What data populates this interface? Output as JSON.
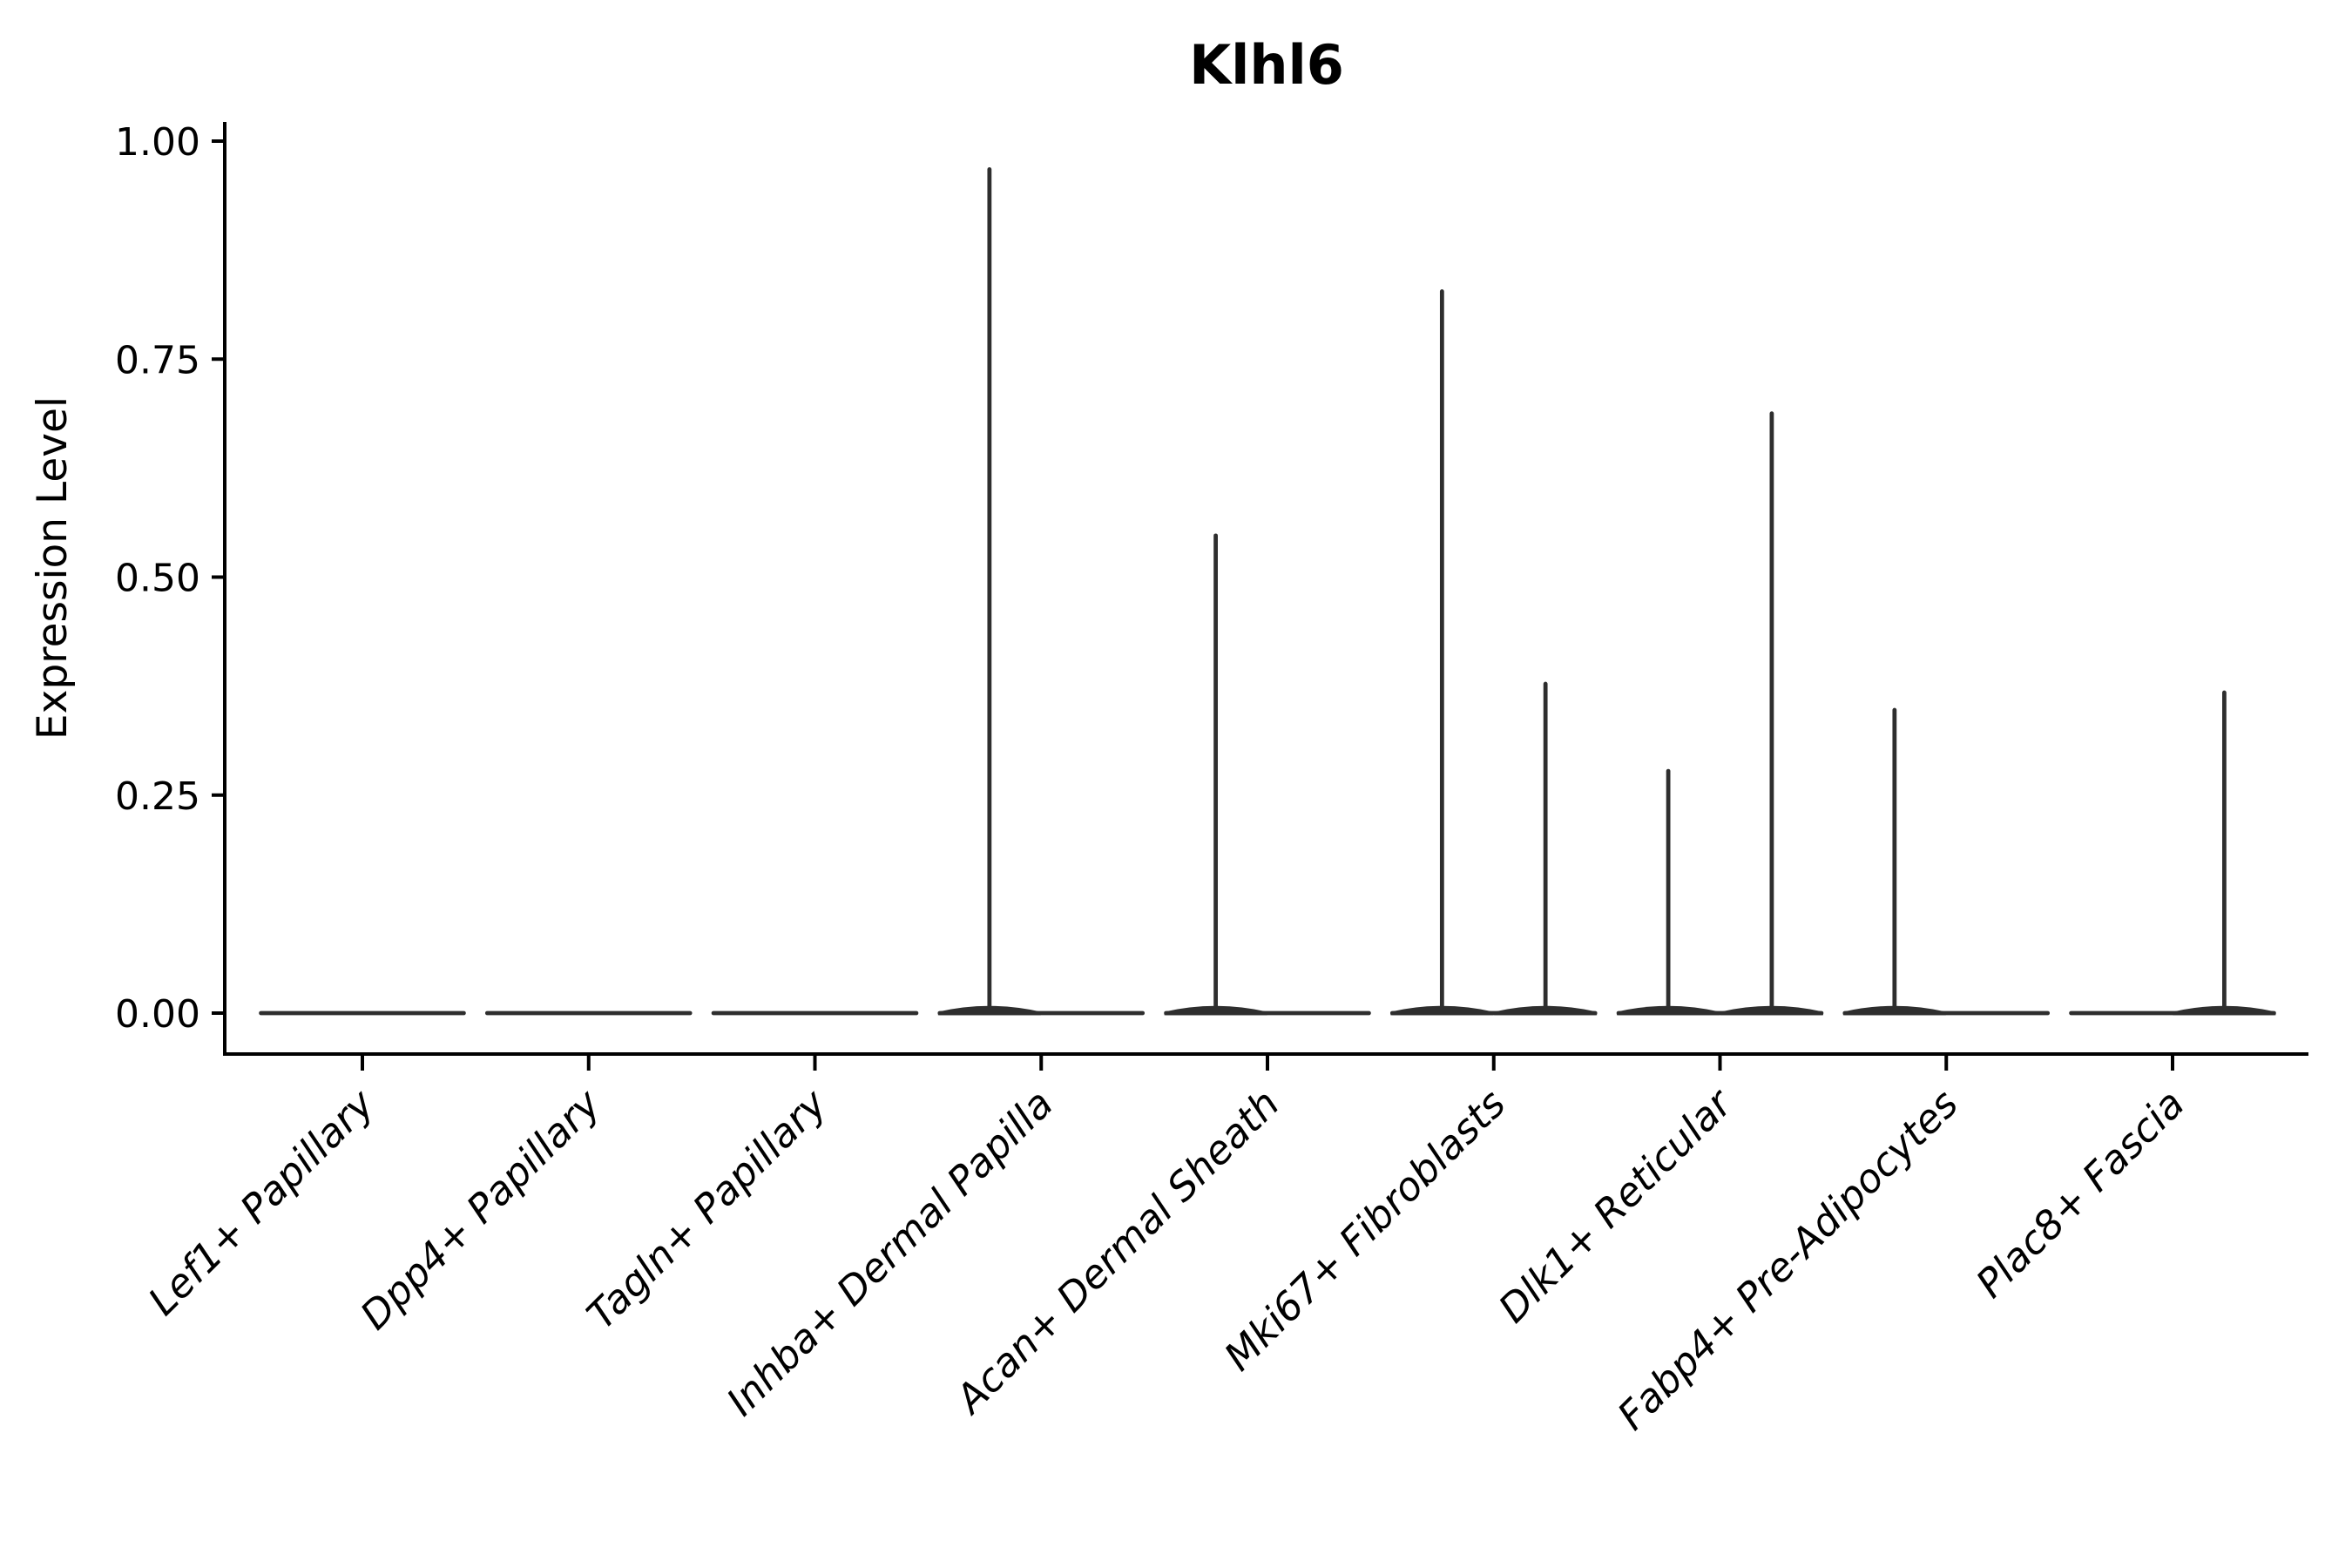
{
  "chart_data": {
    "type": "violin",
    "title": "Klhl6",
    "xlabel": "",
    "ylabel": "Expression Level",
    "ylim": [
      0,
      1.0
    ],
    "grid": false,
    "legend": null,
    "background": "#ffffff",
    "colors": {
      "violin": "#2e2e2e",
      "axis": "#000000",
      "text": "#000000"
    },
    "yticks": [
      {
        "value": 1.0,
        "label": "1.00"
      },
      {
        "value": 0.75,
        "label": "0.75"
      },
      {
        "value": 0.5,
        "label": "0.50"
      },
      {
        "value": 0.25,
        "label": "0.25"
      },
      {
        "value": 0.0,
        "label": "0.00"
      }
    ],
    "categories": [
      "Lef1+ Papillary",
      "Dpp4+ Papillary",
      "Tagln+ Papillary",
      "Inhba+ Dermal Papilla",
      "Acan+ Dermal Sheath",
      "Mki67+ Fibroblasts",
      "Dlk1+ Reticular",
      "Fabp4+ Pre-Adipocytes",
      "Plac8+ Fascia"
    ],
    "violins": [
      {
        "category": "Lef1+ Papillary",
        "baseline_value": 0,
        "spikes": []
      },
      {
        "category": "Dpp4+ Papillary",
        "baseline_value": 0,
        "spikes": []
      },
      {
        "category": "Tagln+ Papillary",
        "baseline_value": 0,
        "spikes": []
      },
      {
        "category": "Inhba+ Dermal Papilla",
        "baseline_value": 0,
        "spikes": [
          {
            "slot": "left",
            "max": 0.97
          }
        ]
      },
      {
        "category": "Acan+ Dermal Sheath",
        "baseline_value": 0,
        "spikes": [
          {
            "slot": "left",
            "max": 0.55
          }
        ]
      },
      {
        "category": "Mki67+ Fibroblasts",
        "baseline_value": 0,
        "spikes": [
          {
            "slot": "left",
            "max": 0.83
          },
          {
            "slot": "right",
            "max": 0.38
          }
        ]
      },
      {
        "category": "Dlk1+ Reticular",
        "baseline_value": 0,
        "spikes": [
          {
            "slot": "left",
            "max": 0.28
          },
          {
            "slot": "right",
            "max": 0.69
          }
        ]
      },
      {
        "category": "Fabp4+ Pre-Adipocytes",
        "baseline_value": 0,
        "spikes": [
          {
            "slot": "left",
            "max": 0.35
          }
        ]
      },
      {
        "category": "Plac8+ Fascia",
        "baseline_value": 0,
        "spikes": [
          {
            "slot": "right",
            "max": 0.37
          }
        ]
      }
    ]
  }
}
